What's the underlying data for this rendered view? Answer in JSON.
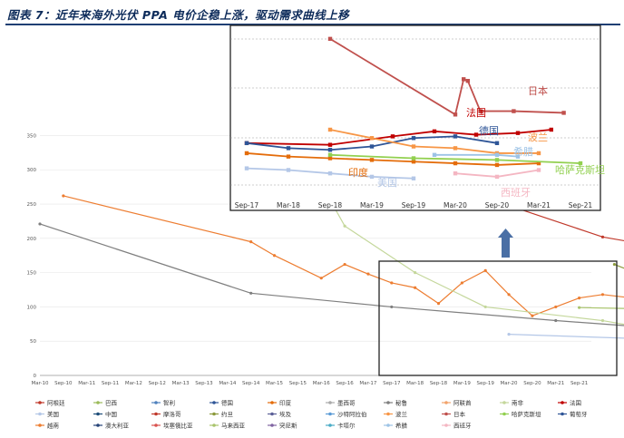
{
  "figure": {
    "title": "图表 7：近年来海外光伏 PPA 电价企稳上涨，驱动需求曲线上移"
  },
  "colors": {
    "阿根廷": "#c0392b",
    "巴西": "#9bbb59",
    "智利": "#4f81bd",
    "德国": "#2e5597",
    "印度": "#e46c0a",
    "墨西哥": "#aaaaaa",
    "秘鲁": "#7f7f7f",
    "阿联酋": "#f2a36b",
    "南非": "#c4d79b",
    "法国": "#c00000",
    "美国": "#b4c7e7",
    "中国": "#1f4e79",
    "摩洛哥": "#c0392b",
    "约旦": "#8c9a3c",
    "埃及": "#5b5f97",
    "沙特阿拉伯": "#5b9bd5",
    "波兰": "#f79646",
    "日本": "#c0504d",
    "哈萨克斯坦": "#92d050",
    "葡萄牙": "#2f5597",
    "越南": "#ed7d31",
    "澳大利亚": "#264478",
    "埃塞俄比亚": "#d9534f",
    "马来西亚": "#a9c46c",
    "突尼斯": "#8064a2",
    "卡塔尔": "#4bacc6",
    "希腊": "#9dc3e6",
    "西班牙": "#f4b6c2"
  },
  "chart_data": [
    {
      "type": "line",
      "x_ticks": [
        "Mar-10",
        "Sep-10",
        "Mar-11",
        "Sep-11",
        "Mar-12",
        "Sep-12",
        "Mar-13",
        "Sep-13",
        "Mar-14",
        "Sep-14",
        "Mar-15",
        "Sep-15",
        "Mar-16",
        "Sep-16",
        "Mar-17",
        "Sep-17",
        "Mar-18",
        "Sep-18",
        "Mar-19",
        "Sep-19",
        "Mar-20",
        "Sep-20",
        "Mar-21",
        "Sep-21"
      ],
      "y_ticks": [
        0,
        50,
        100,
        150,
        200,
        250,
        300,
        350
      ],
      "ylim": [
        0,
        350
      ],
      "legend": [
        "阿根廷",
        "巴西",
        "智利",
        "德国",
        "印度",
        "墨西哥",
        "秘鲁",
        "阿联酋",
        "南非",
        "法国",
        "美国",
        "中国",
        "摩洛哥",
        "约旦",
        "埃及",
        "沙特阿拉伯",
        "波兰",
        "日本",
        "哈萨克斯坦",
        "葡萄牙",
        "越南",
        "澳大利亚",
        "埃塞俄比亚",
        "马来西亚",
        "突尼斯",
        "卡塔尔",
        "希腊",
        "西班牙"
      ],
      "series": [
        {
          "name": "秘鲁",
          "x": [
            0,
            9,
            15,
            22,
            30
          ],
          "y": [
            221,
            120,
            100,
            80,
            60
          ]
        },
        {
          "name": "越南",
          "x": [
            1,
            9,
            10,
            12,
            13,
            14,
            15,
            16,
            17,
            18,
            19,
            20,
            21,
            22,
            23,
            24,
            26
          ],
          "y": [
            262,
            195,
            175,
            142,
            162,
            148,
            135,
            128,
            105,
            135,
            153,
            118,
            87,
            100,
            113,
            118,
            110
          ]
        },
        {
          "name": "南非",
          "x": [
            11,
            13,
            16,
            19,
            24,
            27,
            30,
            33
          ],
          "y": [
            340,
            218,
            150,
            100,
            80,
            62,
            50,
            45
          ]
        },
        {
          "name": "阿根廷",
          "x": [
            13,
            24,
            36,
            45,
            50
          ],
          "y": [
            328,
            202,
            130,
            75,
            60
          ]
        },
        {
          "name": "约旦",
          "x": [
            24.5,
            27,
            29,
            33
          ],
          "y": [
            162,
            128,
            100,
            70
          ]
        },
        {
          "name": "智利",
          "x": [
            29,
            34,
            40
          ],
          "y": [
            100,
            80,
            65
          ]
        },
        {
          "name": "马来西亚",
          "x": [
            23,
            26,
            30,
            35,
            40,
            45
          ],
          "y": [
            99,
            97,
            88,
            75,
            60,
            50
          ]
        },
        {
          "name": "印度",
          "x": [
            25,
            27,
            30,
            31,
            33,
            35,
            37,
            39,
            41,
            43,
            45
          ],
          "y": [
            115,
            110,
            92,
            88,
            70,
            80,
            65,
            60,
            55,
            52,
            50
          ]
        },
        {
          "name": "美国",
          "x": [
            20,
            27,
            33,
            39,
            45,
            50,
            54,
            57
          ],
          "y": [
            60,
            52,
            45,
            40,
            38,
            35,
            32,
            30
          ]
        },
        {
          "name": "德国",
          "x": [
            33,
            36,
            38,
            40,
            42,
            44,
            46,
            48,
            50,
            52
          ],
          "y": [
            98,
            90,
            80,
            75,
            65,
            62,
            58,
            52,
            50,
            50
          ]
        },
        {
          "name": "阿联酋",
          "x": [
            42,
            45,
            48,
            51,
            54,
            57
          ],
          "y": [
            60,
            52,
            45,
            40,
            35,
            30
          ]
        },
        {
          "name": "沙特阿拉伯",
          "x": [
            38,
            42,
            46,
            50,
            54
          ],
          "y": [
            35,
            30,
            25,
            20,
            18
          ]
        }
      ]
    },
    {
      "type": "line",
      "x_ticks": [
        "Sep-17",
        "Mar-18",
        "Sep-18",
        "Mar-19",
        "Sep-19",
        "Mar-20",
        "Sep-20",
        "Mar-21",
        "Sep-21"
      ],
      "series": [
        {
          "name": "日本",
          "x": [
            2,
            5,
            5.2,
            5.3,
            5.6,
            6.4,
            7.6
          ],
          "y": [
            142,
            97,
            118,
            117,
            99,
            99,
            98
          ]
        },
        {
          "name": "法国",
          "x": [
            0,
            2,
            3.5,
            4.5,
            5.5,
            6.5,
            7.3
          ],
          "y": [
            80,
            79,
            84,
            87,
            85,
            86,
            88
          ]
        },
        {
          "name": "德国",
          "x": [
            0,
            1,
            2,
            3,
            4,
            5,
            6
          ],
          "y": [
            80,
            77,
            76,
            78,
            83,
            84,
            80
          ]
        },
        {
          "name": "波兰",
          "x": [
            2,
            3,
            4,
            5,
            6,
            7
          ],
          "y": [
            88,
            83,
            78,
            77,
            74,
            74
          ]
        },
        {
          "name": "希腊",
          "x": [
            4.5,
            6,
            6.5
          ],
          "y": [
            73,
            73,
            72
          ]
        },
        {
          "name": "印度",
          "x": [
            0,
            1,
            2,
            3,
            4,
            5,
            6,
            7
          ],
          "y": [
            74,
            72,
            71,
            70,
            69,
            68,
            67,
            68
          ]
        },
        {
          "name": "美国",
          "x": [
            0,
            1,
            2,
            3,
            4
          ],
          "y": [
            65,
            64,
            62,
            60,
            59
          ]
        },
        {
          "name": "哈萨克斯坦",
          "x": [
            2,
            4,
            6,
            8
          ],
          "y": [
            73,
            71,
            70,
            68
          ]
        },
        {
          "name": "西班牙",
          "x": [
            5,
            6,
            7
          ],
          "y": [
            62,
            60,
            64
          ]
        }
      ],
      "labels": [
        "日本",
        "法国",
        "德国",
        "波兰",
        "希腊",
        "印度",
        "美国",
        "哈萨克斯坦",
        "西班牙"
      ]
    }
  ]
}
